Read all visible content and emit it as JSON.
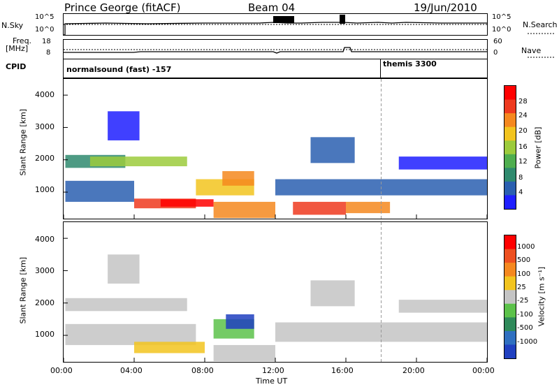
{
  "header": {
    "station": "Prince George (fitACF)",
    "beam": "Beam 04",
    "date": "19/Jun/2010"
  },
  "nsky": {
    "label": "N.Sky",
    "ticks": [
      "10^5",
      "10^0"
    ],
    "right_ticks": [
      "10^5",
      "10^0"
    ],
    "right_label": "N.Search"
  },
  "freq": {
    "label_line1": "Freq.",
    "label_line2": "[MHz]",
    "ticks": [
      "18",
      "8"
    ],
    "right_ticks": [
      "60",
      "0"
    ],
    "right_label": "Nave"
  },
  "cpid": {
    "label": "CPID",
    "programs": [
      {
        "name": "normalsound (fast) -157",
        "start_hour": 0
      },
      {
        "name": "themis 3300",
        "start_hour": 18
      }
    ]
  },
  "time_axis": {
    "label": "Time UT",
    "ticks": [
      "00:00",
      "04:00",
      "08:00",
      "12:00",
      "16:00",
      "20:00",
      "00:00"
    ],
    "start_hour": 0,
    "end_hour": 24
  },
  "power_panel": {
    "ylabel": "Slant Range [km]",
    "yticks": [
      "4000",
      "3000",
      "2000",
      "1000"
    ],
    "colorbar_label": "Power [dB]",
    "colorbar_ticks": [
      "28",
      "24",
      "20",
      "16",
      "12",
      "8",
      "4"
    ],
    "colors": [
      "#1f1fff",
      "#2a5fb0",
      "#2f8a6e",
      "#4fae4f",
      "#9ccb3c",
      "#f2c41f",
      "#f5881f",
      "#ee3a1f",
      "#ff0000"
    ]
  },
  "velocity_panel": {
    "ylabel": "Slant Range [km]",
    "yticks": [
      "4000",
      "3000",
      "2000",
      "1000"
    ],
    "colorbar_label": "Velocity [m s⁻¹]",
    "colorbar_ticks": [
      "1000",
      "500",
      "100",
      "25",
      "-25",
      "-100",
      "-500",
      "-1000"
    ],
    "colors": [
      "#2040c0",
      "#2f6fc0",
      "#2f8a5a",
      "#5cc24a",
      "#c4c4c4",
      "#f2c41f",
      "#f5881f",
      "#ee5020",
      "#ff0000"
    ]
  },
  "chart_data": {
    "type": "heatmap",
    "y_range_km": [
      180,
      4500
    ],
    "x_range_hours": [
      0,
      24
    ],
    "power_regions": [
      {
        "t0": 0.1,
        "t1": 3.5,
        "r0": 1750,
        "r1": 2150,
        "level": 2
      },
      {
        "t0": 1.5,
        "t1": 7.0,
        "r0": 1800,
        "r1": 2100,
        "level": 4
      },
      {
        "t0": 0.1,
        "t1": 4.0,
        "r0": 700,
        "r1": 1350,
        "level": 1
      },
      {
        "t0": 4.0,
        "t1": 7.5,
        "r0": 500,
        "r1": 800,
        "level": 7
      },
      {
        "t0": 5.5,
        "t1": 8.5,
        "r0": 550,
        "r1": 780,
        "level": 8
      },
      {
        "t0": 7.5,
        "t1": 10.8,
        "r0": 900,
        "r1": 1400,
        "level": 5
      },
      {
        "t0": 9.0,
        "t1": 10.8,
        "r0": 1200,
        "r1": 1650,
        "level": 6
      },
      {
        "t0": 8.5,
        "t1": 12.0,
        "r0": 200,
        "r1": 700,
        "level": 6
      },
      {
        "t0": 13.0,
        "t1": 16.0,
        "r0": 300,
        "r1": 700,
        "level": 7
      },
      {
        "t0": 16.0,
        "t1": 18.5,
        "r0": 350,
        "r1": 700,
        "level": 6
      },
      {
        "t0": 12.0,
        "t1": 24.0,
        "r0": 900,
        "r1": 1400,
        "level": 1
      },
      {
        "t0": 2.5,
        "t1": 4.3,
        "r0": 2600,
        "r1": 3500,
        "level": 0
      },
      {
        "t0": 14.0,
        "t1": 16.5,
        "r0": 1900,
        "r1": 2700,
        "level": 1
      },
      {
        "t0": 19.0,
        "t1": 24.0,
        "r0": 1700,
        "r1": 2100,
        "level": 0
      }
    ],
    "velocity_regions": [
      {
        "t0": 0.1,
        "t1": 7.0,
        "r0": 1750,
        "r1": 2150,
        "level": 4
      },
      {
        "t0": 0.1,
        "t1": 7.5,
        "r0": 700,
        "r1": 1350,
        "level": 4
      },
      {
        "t0": 4.0,
        "t1": 8.0,
        "r0": 450,
        "r1": 800,
        "level": 5
      },
      {
        "t0": 8.5,
        "t1": 10.8,
        "r0": 900,
        "r1": 1500,
        "level": 3
      },
      {
        "t0": 9.2,
        "t1": 10.8,
        "r0": 1200,
        "r1": 1650,
        "level": 0
      },
      {
        "t0": 8.5,
        "t1": 12.0,
        "r0": 200,
        "r1": 700,
        "level": 4
      },
      {
        "t0": 12.0,
        "t1": 24.0,
        "r0": 800,
        "r1": 1400,
        "level": 4
      },
      {
        "t0": 2.5,
        "t1": 4.3,
        "r0": 2600,
        "r1": 3500,
        "level": 4
      },
      {
        "t0": 14.0,
        "t1": 16.5,
        "r0": 1900,
        "r1": 2700,
        "level": 4
      },
      {
        "t0": 19.0,
        "t1": 24.0,
        "r0": 1700,
        "r1": 2100,
        "level": 4
      }
    ]
  }
}
